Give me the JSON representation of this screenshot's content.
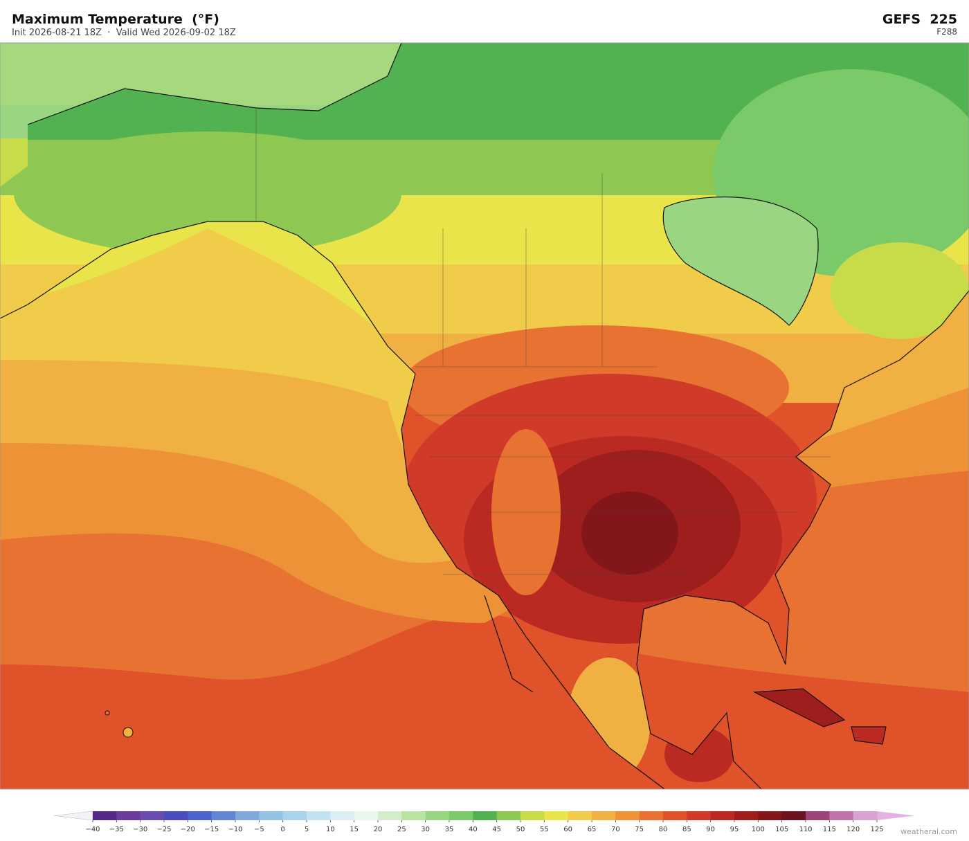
{
  "header": {
    "title": "Maximum Temperature  (°F)",
    "subtitle": "Init 2026-08-21 18Z  ·  Valid Wed 2026-09-02 18Z",
    "model": "GEFS  225",
    "forecast_hour": "F288"
  },
  "colorbar": {
    "ticks": [
      {
        "value": -40,
        "label": "−40"
      },
      {
        "value": -35,
        "label": "−35"
      },
      {
        "value": -30,
        "label": "−30"
      },
      {
        "value": -25,
        "label": "−25"
      },
      {
        "value": -20,
        "label": "−20"
      },
      {
        "value": -15,
        "label": "−15"
      },
      {
        "value": -10,
        "label": "−10"
      },
      {
        "value": -5,
        "label": "−5"
      },
      0,
      5,
      10,
      15,
      20,
      25,
      30,
      35,
      40,
      45,
      50,
      55,
      60,
      65,
      70,
      75,
      80,
      85,
      90,
      95,
      100,
      105,
      110,
      115,
      120,
      125
    ],
    "colors": [
      "#56288a",
      "#6a3a9c",
      "#6a4cae",
      "#4a4cbc",
      "#4c62cc",
      "#6284d2",
      "#80a8da",
      "#94c2e2",
      "#aad2ea",
      "#c2e2f0",
      "#daeef4",
      "#eaf6ee",
      "#d2eccc",
      "#bae2a2",
      "#9ad682",
      "#7aca6a",
      "#52b252",
      "#8ec852",
      "#c8dc4a",
      "#e8e44a",
      "#f0cc4a",
      "#f0b042",
      "#ee9238",
      "#e87232",
      "#e0522a",
      "#d03a28",
      "#ba2a22",
      "#9e1e1e",
      "#82161a",
      "#6c1220",
      "#9c4476",
      "#c072aa",
      "#d8a2d2"
    ],
    "extend_colors": [
      "#f2f2f8",
      "#e2b2e2"
    ]
  },
  "credit": "weatherai.com"
}
